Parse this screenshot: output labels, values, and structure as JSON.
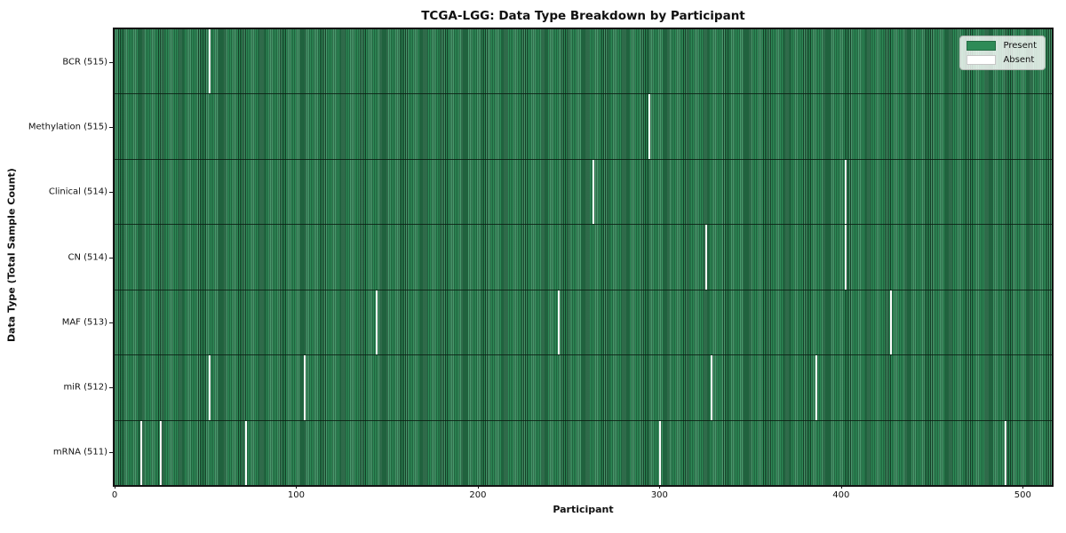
{
  "title": "TCGA-LGG: Data Type Breakdown by Participant",
  "chart_data": {
    "type": "heatmap",
    "title": "TCGA-LGG: Data Type Breakdown by Participant",
    "xlabel": "Participant",
    "ylabel": "Data Type (Total Sample Count)",
    "x_ticks": [
      0,
      100,
      200,
      300,
      400,
      500
    ],
    "x_range": [
      0,
      516
    ],
    "n_participants": 516,
    "grid": false,
    "legend_position": "upper right",
    "legend": [
      {
        "label": "Present",
        "color": "#2e8b57"
      },
      {
        "label": "Absent",
        "color": "#ffffff"
      }
    ],
    "colors": {
      "present": "#2e8b57",
      "absent": "#ffffff",
      "row_divider": "#15301f"
    },
    "rows": [
      {
        "label": "BCR (515)",
        "data_type": "BCR",
        "total_sample_count": 515,
        "absent_participants": [
          52
        ]
      },
      {
        "label": "Methylation (515)",
        "data_type": "Methylation",
        "total_sample_count": 515,
        "absent_participants": [
          294
        ]
      },
      {
        "label": "Clinical (514)",
        "data_type": "Clinical",
        "total_sample_count": 514,
        "absent_participants": [
          263,
          402
        ]
      },
      {
        "label": "CN (514)",
        "data_type": "CN",
        "total_sample_count": 514,
        "absent_participants": [
          325,
          402
        ]
      },
      {
        "label": "MAF (513)",
        "data_type": "MAF",
        "total_sample_count": 513,
        "absent_participants": [
          144,
          244,
          427
        ]
      },
      {
        "label": "miR (512)",
        "data_type": "miR",
        "total_sample_count": 512,
        "absent_participants": [
          52,
          104,
          328,
          386
        ]
      },
      {
        "label": "mRNA (511)",
        "data_type": "mRNA",
        "total_sample_count": 511,
        "absent_participants": [
          14,
          25,
          72,
          300,
          490
        ]
      }
    ]
  }
}
